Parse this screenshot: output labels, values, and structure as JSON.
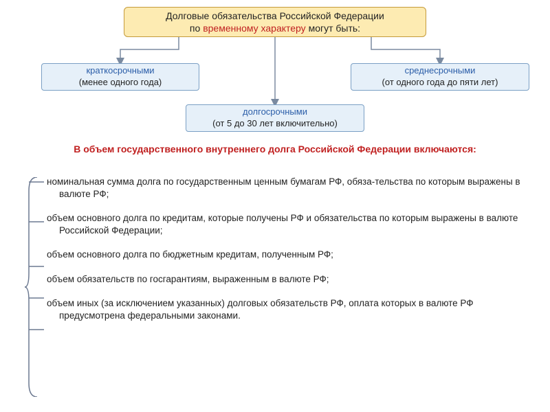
{
  "header": {
    "line1": "Долговые обязательства Российской Федерации",
    "line2_prefix": "по ",
    "line2_em": "временному характеру",
    "line2_suffix": " могут быть:"
  },
  "boxes": {
    "left": {
      "title": "краткосрочными",
      "sub": "(менее одного года)"
    },
    "right": {
      "title": "среднесрочными",
      "sub": "(от одного года до пяти лет)"
    },
    "mid": {
      "title": "долгосрочными",
      "sub": "(от 5 до 30 лет включительно)"
    }
  },
  "section_title": "В объем государственного внутреннего долга Российской Федерации включаются:",
  "items": [
    "номинальная сумма долга по государственным ценным бумагам РФ, обяза-тельства по которым выражены в валюте РФ;",
    "объем основного долга по кредитам, которые получены РФ и обязательства по которым выражены в валюте Российской Федерации;",
    "объем основного долга по бюджетным кредитам, полученным РФ;",
    "объем обязательств по госгарантиям, выраженным в валюте РФ;",
    "объем иных (за исключением указанных) долговых обязательств РФ, оплата которых в валюте РФ предусмотрена федеральными законами."
  ],
  "style": {
    "header_bg": "#fdebb2",
    "header_border": "#c49a3a",
    "sub_bg": "#e6f0f9",
    "sub_border": "#7a9fc4",
    "title_color": "#2a5da8",
    "accent_color": "#c02020",
    "arrow_color": "#7a8aa0",
    "bracket_color": "#6b7890",
    "text_color": "#222222",
    "font_body": 13.5,
    "font_box": 13,
    "font_header": 14
  },
  "item_y_positions": [
    7,
    65,
    130,
    176,
    222
  ]
}
